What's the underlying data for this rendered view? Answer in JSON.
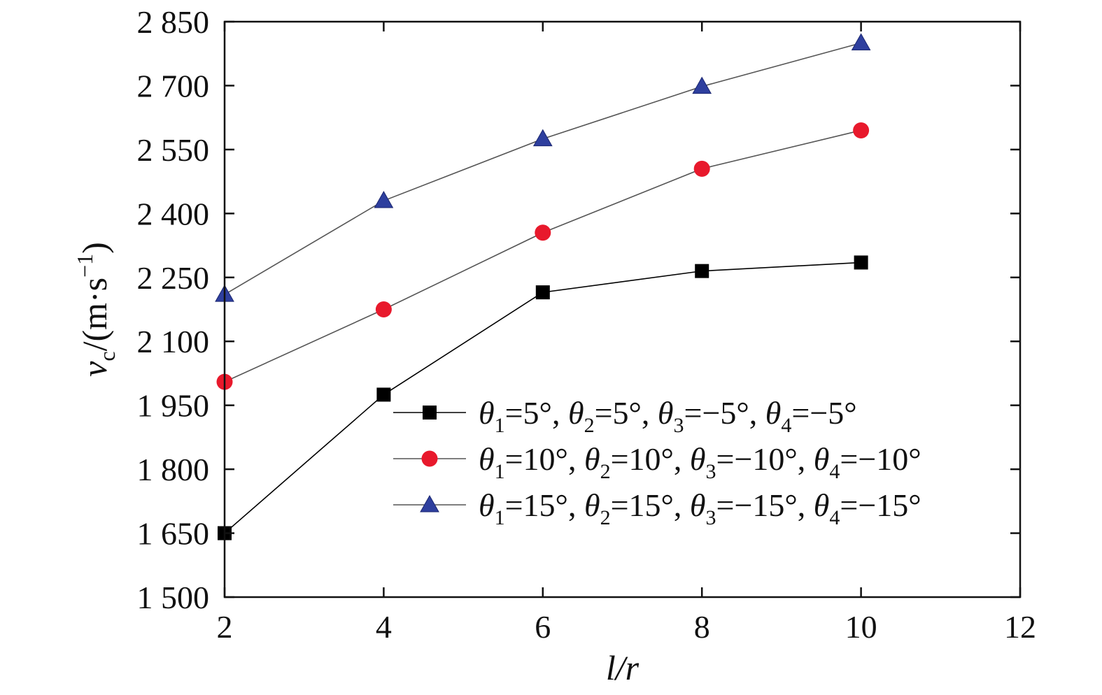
{
  "chart_data": {
    "type": "line",
    "xlabel": "l/r",
    "ylabel": {
      "symbol": "v",
      "subscript": "c",
      "unit_open": "/(m·s",
      "unit_exponent": "−1",
      "unit_close": ")"
    },
    "xlim": [
      2,
      12
    ],
    "ylim": [
      1500,
      2850
    ],
    "x_ticks": [
      2,
      4,
      6,
      8,
      10,
      12
    ],
    "y_ticks": [
      1500,
      1650,
      1800,
      1950,
      2100,
      2250,
      2400,
      2550,
      2700,
      2850
    ],
    "x_tick_labels": [
      "2",
      "4",
      "6",
      "8",
      "10",
      "12"
    ],
    "y_tick_labels": [
      "1 500",
      "1 650",
      "1 800",
      "1 950",
      "2 100",
      "2 250",
      "2 400",
      "2 550",
      "2 700",
      "2 850"
    ],
    "grid": false,
    "legend_position": "lower-right",
    "x": [
      2,
      4,
      6,
      8,
      10
    ],
    "series": [
      {
        "name": "θ1=5°, θ2=5°, θ3=−5°, θ4=−5°",
        "legend_parts": [
          {
            "sym": "θ",
            "sub": "1",
            "val": "=5°, "
          },
          {
            "sym": "θ",
            "sub": "2",
            "val": "=5°, "
          },
          {
            "sym": "θ",
            "sub": "3",
            "val": "=−5°, "
          },
          {
            "sym": "θ",
            "sub": "4",
            "val": "=−5°"
          }
        ],
        "marker": "square",
        "color": "#000000",
        "line_color": "#000000",
        "values": [
          1650,
          1975,
          2215,
          2265,
          2285
        ]
      },
      {
        "name": "θ1=10°, θ2=10°, θ3=−10°, θ4=−10°",
        "legend_parts": [
          {
            "sym": "θ",
            "sub": "1",
            "val": "=10°, "
          },
          {
            "sym": "θ",
            "sub": "2",
            "val": "=10°, "
          },
          {
            "sym": "θ",
            "sub": "3",
            "val": "=−10°, "
          },
          {
            "sym": "θ",
            "sub": "4",
            "val": "=−10°"
          }
        ],
        "marker": "circle",
        "color": "#e8192c",
        "line_color": "#555555",
        "values": [
          2005,
          2175,
          2355,
          2505,
          2595
        ]
      },
      {
        "name": "θ1=15°, θ2=15°, θ3=−15°, θ4=−15°",
        "legend_parts": [
          {
            "sym": "θ",
            "sub": "1",
            "val": "=15°, "
          },
          {
            "sym": "θ",
            "sub": "2",
            "val": "=15°, "
          },
          {
            "sym": "θ",
            "sub": "3",
            "val": "=−15°, "
          },
          {
            "sym": "θ",
            "sub": "4",
            "val": "=−15°"
          }
        ],
        "marker": "triangle",
        "color": "#2e3f9e",
        "line_color": "#555555",
        "values": [
          2210,
          2430,
          2575,
          2698,
          2800
        ]
      }
    ]
  }
}
